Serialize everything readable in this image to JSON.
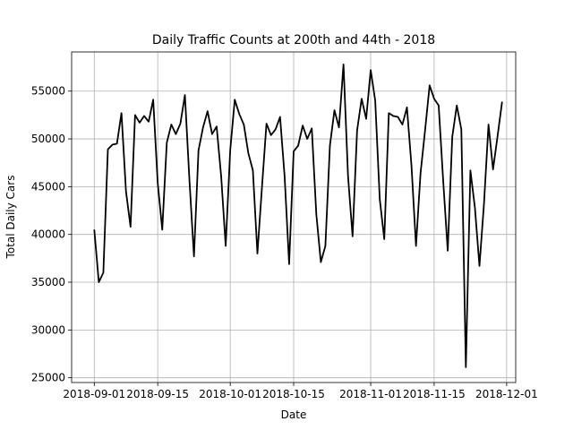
{
  "chart_data": {
    "type": "line",
    "title": "Daily Traffic Counts at 200th and 44th - 2018",
    "xlabel": "Date",
    "ylabel": "Total Daily Cars",
    "x_axis_type": "date",
    "xlim": [
      "2018-08-27",
      "2018-12-03"
    ],
    "ylim": [
      24500,
      59100
    ],
    "x_ticks": [
      "2018-09-01",
      "2018-09-15",
      "2018-10-01",
      "2018-10-15",
      "2018-11-01",
      "2018-11-15",
      "2018-12-01"
    ],
    "y_ticks": [
      25000,
      30000,
      35000,
      40000,
      45000,
      50000,
      55000
    ],
    "grid": true,
    "line_color": "#000000",
    "series": [
      {
        "x": [
          "2018-09-01",
          "2018-09-02",
          "2018-09-03",
          "2018-09-04",
          "2018-09-05",
          "2018-09-06",
          "2018-09-07",
          "2018-09-08",
          "2018-09-09",
          "2018-09-10",
          "2018-09-11",
          "2018-09-12",
          "2018-09-13",
          "2018-09-14",
          "2018-09-15",
          "2018-09-16",
          "2018-09-17",
          "2018-09-18",
          "2018-09-19",
          "2018-09-20",
          "2018-09-21",
          "2018-09-22",
          "2018-09-23",
          "2018-09-24",
          "2018-09-25",
          "2018-09-26",
          "2018-09-27",
          "2018-09-28",
          "2018-09-29",
          "2018-09-30",
          "2018-10-01",
          "2018-10-02",
          "2018-10-03",
          "2018-10-04",
          "2018-10-05",
          "2018-10-06",
          "2018-10-07",
          "2018-10-08",
          "2018-10-09",
          "2018-10-10",
          "2018-10-11",
          "2018-10-12",
          "2018-10-13",
          "2018-10-14",
          "2018-10-15",
          "2018-10-16",
          "2018-10-17",
          "2018-10-18",
          "2018-10-19",
          "2018-10-20",
          "2018-10-21",
          "2018-10-22",
          "2018-10-23",
          "2018-10-24",
          "2018-10-25",
          "2018-10-26",
          "2018-10-27",
          "2018-10-28",
          "2018-10-29",
          "2018-10-30",
          "2018-10-31",
          "2018-11-01",
          "2018-11-02",
          "2018-11-03",
          "2018-11-04",
          "2018-11-05",
          "2018-11-06",
          "2018-11-07",
          "2018-11-08",
          "2018-11-09",
          "2018-11-10",
          "2018-11-11",
          "2018-11-12",
          "2018-11-13",
          "2018-11-14",
          "2018-11-15",
          "2018-11-16",
          "2018-11-17",
          "2018-11-18",
          "2018-11-19",
          "2018-11-20",
          "2018-11-21",
          "2018-11-22",
          "2018-11-23",
          "2018-11-24",
          "2018-11-25",
          "2018-11-26",
          "2018-11-27",
          "2018-11-28",
          "2018-11-29",
          "2018-11-30"
        ],
        "y": [
          40500,
          35000,
          36000,
          48900,
          49400,
          49500,
          52700,
          44500,
          40800,
          52500,
          51700,
          52400,
          51800,
          54100,
          45400,
          40500,
          49600,
          51500,
          50500,
          51600,
          54600,
          45700,
          37700,
          48800,
          51200,
          52900,
          50500,
          51300,
          46100,
          38800,
          48800,
          54100,
          52600,
          51500,
          48500,
          46700,
          38000,
          44900,
          51600,
          50400,
          51000,
          52300,
          46100,
          36900,
          48700,
          49300,
          51400,
          50000,
          51100,
          42100,
          37100,
          38800,
          49300,
          53000,
          51200,
          57800,
          46100,
          39800,
          50900,
          54200,
          52100,
          57200,
          54000,
          43700,
          39500,
          52700,
          52400,
          52300,
          51500,
          53300,
          47200,
          38800,
          46400,
          50900,
          55600,
          54200,
          53500,
          45600,
          38300,
          50200,
          53500,
          51000,
          26100,
          46700,
          42800,
          36700,
          43200,
          51500,
          46800,
          50300,
          53900
        ]
      }
    ]
  }
}
